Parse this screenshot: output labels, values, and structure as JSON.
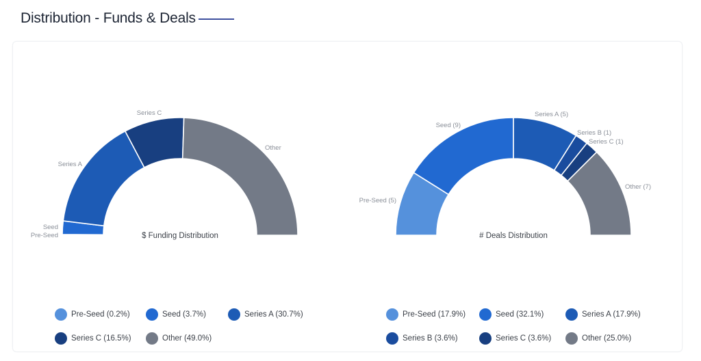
{
  "header": {
    "title": "Distribution - Funds & Deals"
  },
  "colors": {
    "pre_seed": "#5591DC",
    "seed": "#2169D1",
    "series_a": "#1D5BB5",
    "series_b": "#1A4C9E",
    "series_c": "#183F80",
    "other": "#737A87",
    "title_rule": "#3d4f9e"
  },
  "chart_data": [
    {
      "type": "pie",
      "subtype": "half-donut",
      "title": "$ Funding Distribution",
      "categories": [
        "Pre-Seed",
        "Seed",
        "Series A",
        "Series C",
        "Other"
      ],
      "values": [
        0.2,
        3.7,
        30.7,
        16.5,
        49.0
      ],
      "unit": "%",
      "slice_labels": [
        "Pre-Seed",
        "Seed",
        "Series A",
        "Series C",
        "Other"
      ],
      "legend": [
        "Pre-Seed (0.2%)",
        "Seed (3.7%)",
        "Series A (30.7%)",
        "Series C (16.5%)",
        "Other (49.0%)"
      ],
      "colors": [
        "#5591DC",
        "#2169D1",
        "#1D5BB5",
        "#183F80",
        "#737A87"
      ],
      "legend_position": "bottom"
    },
    {
      "type": "pie",
      "subtype": "half-donut",
      "title": "# Deals Distribution",
      "categories": [
        "Pre-Seed",
        "Seed",
        "Series A",
        "Series B",
        "Series C",
        "Other"
      ],
      "values": [
        5,
        9,
        5,
        1,
        1,
        7
      ],
      "percentages": [
        17.9,
        32.1,
        17.9,
        3.6,
        3.6,
        25.0
      ],
      "slice_labels": [
        "Pre-Seed (5)",
        "Seed (9)",
        "Series A (5)",
        "Series B (1)",
        "Series C (1)",
        "Other (7)"
      ],
      "legend": [
        "Pre-Seed (17.9%)",
        "Seed (32.1%)",
        "Series A (17.9%)",
        "Series B (3.6%)",
        "Series C (3.6%)",
        "Other (25.0%)"
      ],
      "colors": [
        "#5591DC",
        "#2169D1",
        "#1D5BB5",
        "#1A4C9E",
        "#183F80",
        "#737A87"
      ],
      "legend_position": "bottom"
    }
  ]
}
